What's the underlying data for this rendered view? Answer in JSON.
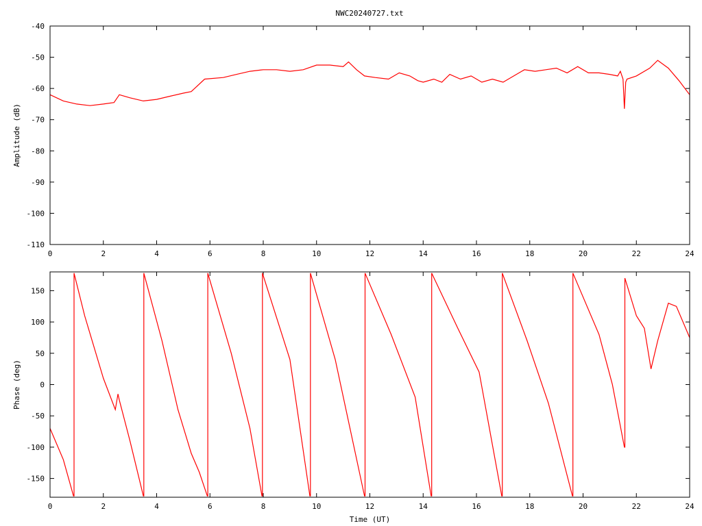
{
  "title": "NWC20240727.txt",
  "colors": {
    "series": "#ff0000",
    "axes": "#000000",
    "background": "#ffffff"
  },
  "chart_data": [
    {
      "type": "line",
      "ylabel": "Amplitude (dB)",
      "xlabel": "",
      "xlim": [
        0,
        24
      ],
      "ylim": [
        -110,
        -40
      ],
      "xticks": [
        0,
        2,
        4,
        6,
        8,
        10,
        12,
        14,
        16,
        18,
        20,
        22,
        24
      ],
      "yticks": [
        -40,
        -50,
        -60,
        -70,
        -80,
        -90,
        -100,
        -110
      ],
      "grid": false,
      "x": [
        0,
        0.5,
        1,
        1.5,
        2,
        2.4,
        2.6,
        3,
        3.5,
        4,
        4.5,
        5,
        5.3,
        5.8,
        6.5,
        7,
        7.5,
        8,
        8.5,
        9,
        9.5,
        10,
        10.5,
        11,
        11.2,
        11.5,
        11.8,
        12.2,
        12.7,
        13.1,
        13.5,
        13.8,
        14,
        14.4,
        14.7,
        15,
        15.4,
        15.8,
        16.2,
        16.6,
        17,
        17.4,
        17.8,
        18.2,
        18.6,
        19,
        19.4,
        19.8,
        20.2,
        20.6,
        21,
        21.3,
        21.4,
        21.5,
        21.55,
        21.6,
        21.65,
        22,
        22.5,
        22.8,
        23.2,
        23.6,
        24
      ],
      "y": [
        -62,
        -64,
        -65,
        -65.5,
        -65,
        -64.5,
        -62,
        -63,
        -64,
        -63.5,
        -62.5,
        -61.5,
        -61,
        -57,
        -56.5,
        -55.5,
        -54.5,
        -54,
        -54,
        -54.5,
        -54,
        -52.5,
        -52.5,
        -53,
        -51.5,
        -54,
        -56,
        -56.5,
        -57,
        -55,
        -56,
        -57.5,
        -58,
        -57,
        -58,
        -55.5,
        -57,
        -56,
        -58,
        -57,
        -58,
        -56,
        -54,
        -54.5,
        -54,
        -53.5,
        -55,
        -53,
        -55,
        -55,
        -55.5,
        -56,
        -54.5,
        -57,
        -66.5,
        -58,
        -57,
        -56,
        -53.5,
        -51,
        -53.5,
        -57.5,
        -62
      ]
    },
    {
      "type": "line",
      "ylabel": "Phase (deg)",
      "xlabel": "Time (UT)",
      "xlim": [
        0,
        24
      ],
      "ylim": [
        -180,
        180
      ],
      "xticks": [
        0,
        2,
        4,
        6,
        8,
        10,
        12,
        14,
        16,
        18,
        20,
        22,
        24
      ],
      "yticks": [
        150,
        100,
        50,
        0,
        -50,
        -100,
        -150
      ],
      "grid": false,
      "x": [
        0,
        0.5,
        0.88,
        0.9,
        0.9,
        1.3,
        2.0,
        2.45,
        2.55,
        2.6,
        3.0,
        3.5,
        3.52,
        3.52,
        4.2,
        4.8,
        5.3,
        5.6,
        5.9,
        5.92,
        5.92,
        6.8,
        7.5,
        7.95,
        7.97,
        7.97,
        9.0,
        9.75,
        9.77,
        9.77,
        10.7,
        11.8,
        11.82,
        11.82,
        12.8,
        13.7,
        14.3,
        14.32,
        14.32,
        15.3,
        16.1,
        16.95,
        16.97,
        16.97,
        17.9,
        18.7,
        19.6,
        19.62,
        19.62,
        20.6,
        21.1,
        21.55,
        21.57,
        21.57,
        22.0,
        22.3,
        22.55,
        22.8,
        23.2,
        23.5,
        24
      ],
      "y": [
        -70,
        -120,
        -178,
        -178,
        178,
        110,
        10,
        -40,
        -15,
        -25,
        -90,
        -178,
        -178,
        178,
        70,
        -40,
        -110,
        -140,
        -178,
        -178,
        178,
        50,
        -70,
        -178,
        -178,
        178,
        40,
        -178,
        -178,
        178,
        40,
        -178,
        -178,
        178,
        80,
        -20,
        -178,
        -178,
        178,
        90,
        20,
        -178,
        -178,
        178,
        70,
        -30,
        -178,
        -178,
        178,
        80,
        0,
        -100,
        -100,
        170,
        110,
        90,
        25,
        70,
        130,
        125,
        75
      ]
    }
  ]
}
